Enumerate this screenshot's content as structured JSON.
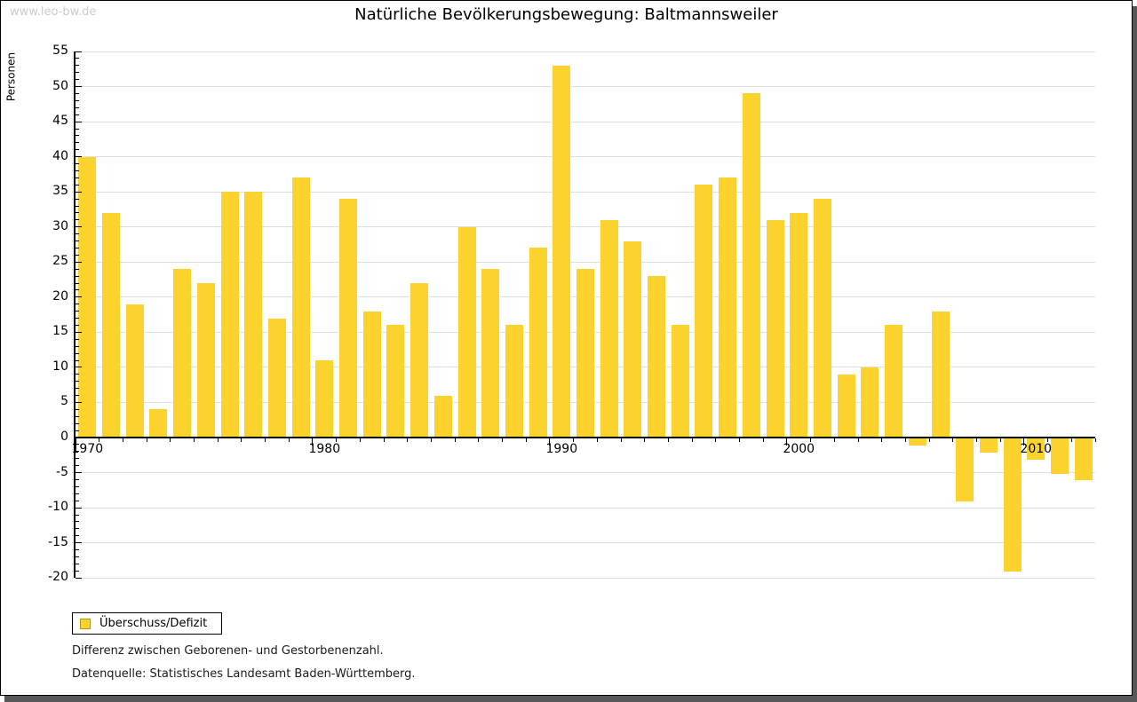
{
  "watermark": "www.leo-bw.de",
  "title": "Natürliche Bevölkerungsbewegung: Baltmannsweiler",
  "legend": {
    "label": "Überschuss/Defizit",
    "swatch_color": "#fcd32d",
    "swatch_border_color": "#b59410"
  },
  "footnotes": {
    "line1": "Differenz zwischen Geborenen- und Gestorbenenzahl.",
    "line2": "Datenquelle: Statistisches Landesamt Baden-Württemberg."
  },
  "chart_data": {
    "type": "bar",
    "title": "Natürliche Bevölkerungsbewegung: Baltmannsweiler",
    "xlabel": "",
    "ylabel": "Personen",
    "series_name": "Überschuss/Defizit",
    "x": [
      1970,
      1971,
      1972,
      1973,
      1974,
      1975,
      1976,
      1977,
      1978,
      1979,
      1980,
      1981,
      1982,
      1983,
      1984,
      1985,
      1986,
      1987,
      1988,
      1989,
      1990,
      1991,
      1992,
      1993,
      1994,
      1995,
      1996,
      1997,
      1998,
      1999,
      2000,
      2001,
      2002,
      2003,
      2004,
      2005,
      2006,
      2007,
      2008,
      2009,
      2010,
      2011,
      2012
    ],
    "values": [
      40,
      32,
      19,
      4,
      24,
      22,
      35,
      35,
      17,
      37,
      11,
      34,
      18,
      16,
      22,
      6,
      30,
      24,
      16,
      27,
      53,
      24,
      31,
      28,
      23,
      16,
      36,
      37,
      49,
      31,
      32,
      34,
      9,
      10,
      16,
      -1,
      18,
      -9,
      -2,
      -19,
      -3,
      -5,
      -6
    ],
    "ylim": [
      -20,
      55
    ],
    "ytick_step": 5,
    "ytick_minor_step": 1,
    "xtick_labels": [
      1970,
      1980,
      1990,
      2000,
      2010
    ],
    "grid": "horizontal",
    "legend_position": "bottom-left",
    "bar_color": "#fcd32d",
    "grid_color": "#e0e0e0",
    "axis_color": "#000000"
  }
}
